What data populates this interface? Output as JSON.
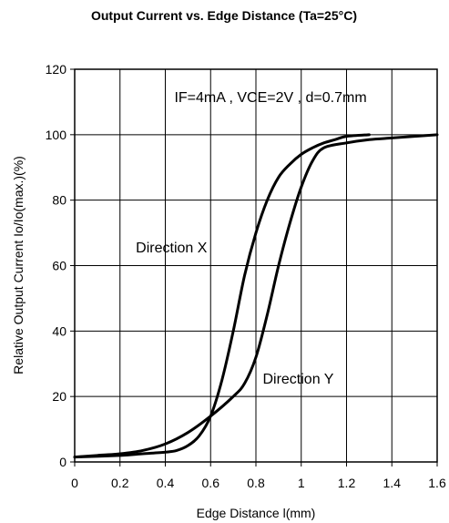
{
  "chart_data": {
    "type": "line",
    "title": "Output Current vs. Edge Distance (Ta=25°C)",
    "xlabel": "Edge Distance l(mm)",
    "ylabel": "Relative Output Current Io/Io(max.)(%)",
    "xlim": [
      0,
      1.6
    ],
    "ylim": [
      0,
      120
    ],
    "xticks": [
      0,
      0.2,
      0.4,
      0.6,
      0.8,
      1,
      1.2,
      1.4,
      1.6
    ],
    "xtick_labels": [
      "0",
      "0.2",
      "0.4",
      "0.6",
      "0.8",
      "1",
      "1.2",
      "1.4",
      "1.6"
    ],
    "yticks": [
      0,
      20,
      40,
      60,
      80,
      100,
      120
    ],
    "ytick_labels": [
      "0",
      "20",
      "40",
      "60",
      "80",
      "100",
      "120"
    ],
    "grid": true,
    "annotations": [
      {
        "text": "IF=4mA , VCE=2V , d=0.7mm",
        "x": 0.44,
        "y": 110
      },
      {
        "text": "Direction X",
        "x": 0.27,
        "y": 64
      },
      {
        "text": "Direction Y",
        "x": 0.83,
        "y": 24
      }
    ],
    "series": [
      {
        "label": "Direction X",
        "x": [
          0,
          0.2,
          0.3,
          0.4,
          0.45,
          0.5,
          0.55,
          0.6,
          0.65,
          0.7,
          0.75,
          0.8,
          0.85,
          0.9,
          0.95,
          1.0,
          1.05,
          1.1,
          1.15,
          1.2,
          1.3
        ],
        "y": [
          1.5,
          2,
          2.5,
          3,
          3.5,
          5,
          8,
          14,
          25,
          40,
          57,
          70,
          80,
          87,
          91,
          94,
          96,
          97.5,
          98.5,
          99.5,
          100
        ]
      },
      {
        "label": "Direction Y",
        "x": [
          0,
          0.1,
          0.2,
          0.3,
          0.4,
          0.5,
          0.6,
          0.7,
          0.75,
          0.8,
          0.85,
          0.9,
          0.95,
          1.0,
          1.05,
          1.1,
          1.2,
          1.3,
          1.4,
          1.5,
          1.6
        ],
        "y": [
          1.5,
          2,
          2.5,
          3.5,
          5.5,
          9,
          14,
          20,
          24,
          32,
          45,
          60,
          73,
          84,
          92,
          96,
          97.5,
          98.5,
          99,
          99.5,
          100
        ]
      }
    ]
  }
}
